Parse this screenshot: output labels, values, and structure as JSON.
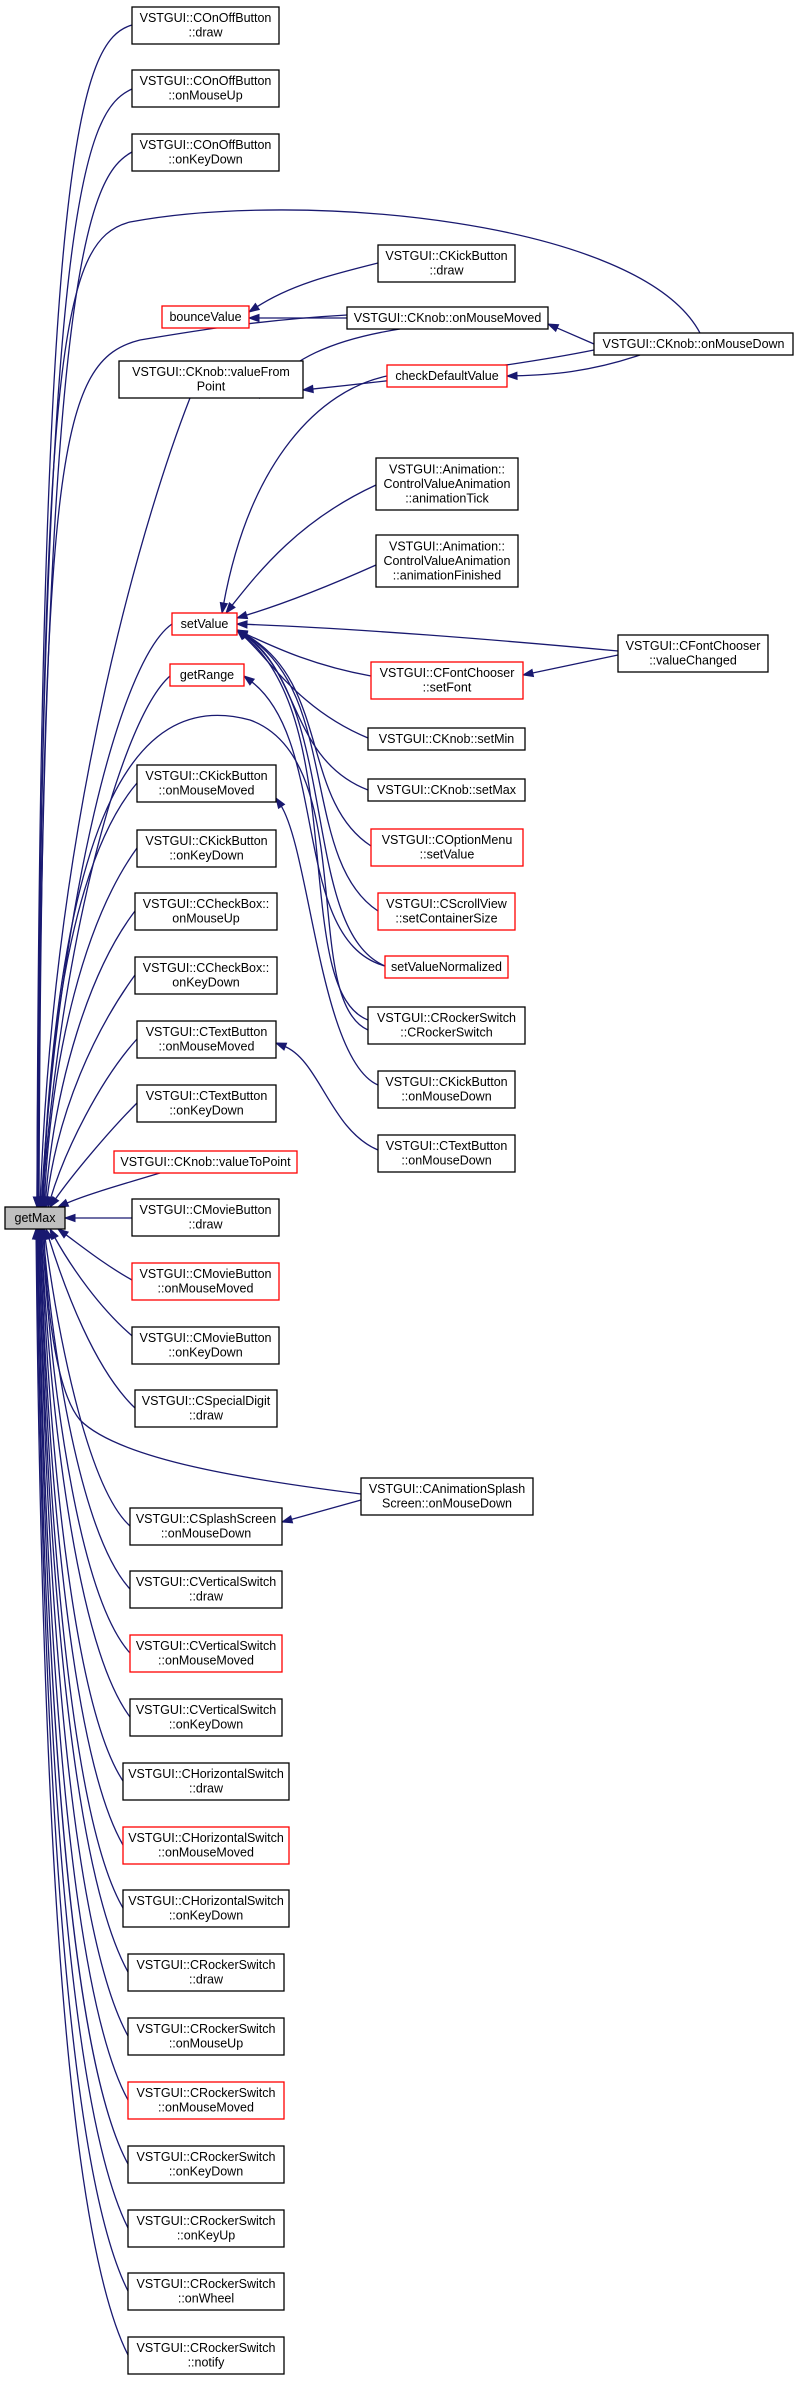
{
  "colors": {
    "edge": "#191970",
    "node_border": "#000000",
    "node_border_truncated": "#ff0000",
    "node_fill": "#ffffff",
    "root_fill": "#bfbfbf"
  },
  "nodes": [
    {
      "id": "getMax",
      "lines": [
        "getMax"
      ],
      "style": "root"
    },
    {
      "id": "onoff_draw",
      "lines": [
        "VSTGUI::COnOffButton",
        "::draw"
      ],
      "style": "normal"
    },
    {
      "id": "onoff_mouseup",
      "lines": [
        "VSTGUI::COnOffButton",
        "::onMouseUp"
      ],
      "style": "normal"
    },
    {
      "id": "onoff_keydown",
      "lines": [
        "VSTGUI::COnOffButton",
        "::onKeyDown"
      ],
      "style": "normal"
    },
    {
      "id": "kick_draw",
      "lines": [
        "VSTGUI::CKickButton",
        "::draw"
      ],
      "style": "normal"
    },
    {
      "id": "bounceValue",
      "lines": [
        "bounceValue"
      ],
      "style": "red"
    },
    {
      "id": "knob_mousemoved",
      "lines": [
        "VSTGUI::CKnob::onMouseMoved"
      ],
      "style": "normal"
    },
    {
      "id": "knob_mousedown",
      "lines": [
        "VSTGUI::CKnob::onMouseDown"
      ],
      "style": "normal"
    },
    {
      "id": "knob_valuefrompoint",
      "lines": [
        "VSTGUI::CKnob::valueFrom",
        "Point"
      ],
      "style": "normal"
    },
    {
      "id": "checkDefaultValue",
      "lines": [
        "checkDefaultValue"
      ],
      "style": "red"
    },
    {
      "id": "anim_tick",
      "lines": [
        "VSTGUI::Animation::",
        "ControlValueAnimation",
        "::animationTick"
      ],
      "style": "normal"
    },
    {
      "id": "anim_finished",
      "lines": [
        "VSTGUI::Animation::",
        "ControlValueAnimation",
        "::animationFinished"
      ],
      "style": "normal"
    },
    {
      "id": "setValue",
      "lines": [
        "setValue"
      ],
      "style": "red"
    },
    {
      "id": "fontchooser_valuechanged",
      "lines": [
        "VSTGUI::CFontChooser",
        "::valueChanged"
      ],
      "style": "normal"
    },
    {
      "id": "fontchooser_setfont",
      "lines": [
        "VSTGUI::CFontChooser",
        "::setFont"
      ],
      "style": "red"
    },
    {
      "id": "getRange",
      "lines": [
        "getRange"
      ],
      "style": "red"
    },
    {
      "id": "knob_setmin",
      "lines": [
        "VSTGUI::CKnob::setMin"
      ],
      "style": "normal"
    },
    {
      "id": "knob_setmax",
      "lines": [
        "VSTGUI::CKnob::setMax"
      ],
      "style": "normal"
    },
    {
      "id": "kick_mousemoved",
      "lines": [
        "VSTGUI::CKickButton",
        "::onMouseMoved"
      ],
      "style": "normal"
    },
    {
      "id": "optionmenu_setvalue",
      "lines": [
        "VSTGUI::COptionMenu",
        "::setValue"
      ],
      "style": "red"
    },
    {
      "id": "kick_keydown",
      "lines": [
        "VSTGUI::CKickButton",
        "::onKeyDown"
      ],
      "style": "normal"
    },
    {
      "id": "scrollview_setcontainersize",
      "lines": [
        "VSTGUI::CScrollView",
        "::setContainerSize"
      ],
      "style": "red"
    },
    {
      "id": "checkbox_mouseup",
      "lines": [
        "VSTGUI::CCheckBox::",
        "onMouseUp"
      ],
      "style": "normal"
    },
    {
      "id": "setValueNormalized",
      "lines": [
        "setValueNormalized"
      ],
      "style": "red"
    },
    {
      "id": "checkbox_keydown",
      "lines": [
        "VSTGUI::CCheckBox::",
        "onKeyDown"
      ],
      "style": "normal"
    },
    {
      "id": "rocker_ctor",
      "lines": [
        "VSTGUI::CRockerSwitch",
        "::CRockerSwitch"
      ],
      "style": "normal"
    },
    {
      "id": "text_mousemoved",
      "lines": [
        "VSTGUI::CTextButton",
        "::onMouseMoved"
      ],
      "style": "normal"
    },
    {
      "id": "kick_mousedown",
      "lines": [
        "VSTGUI::CKickButton",
        "::onMouseDown"
      ],
      "style": "normal"
    },
    {
      "id": "text_keydown",
      "lines": [
        "VSTGUI::CTextButton",
        "::onKeyDown"
      ],
      "style": "normal"
    },
    {
      "id": "text_mousedown",
      "lines": [
        "VSTGUI::CTextButton",
        "::onMouseDown"
      ],
      "style": "normal"
    },
    {
      "id": "knob_valuetopoint",
      "lines": [
        "VSTGUI::CKnob::valueToPoint"
      ],
      "style": "red"
    },
    {
      "id": "movie_draw",
      "lines": [
        "VSTGUI::CMovieButton",
        "::draw"
      ],
      "style": "normal"
    },
    {
      "id": "movie_mousemoved",
      "lines": [
        "VSTGUI::CMovieButton",
        "::onMouseMoved"
      ],
      "style": "red"
    },
    {
      "id": "movie_keydown",
      "lines": [
        "VSTGUI::CMovieButton",
        "::onKeyDown"
      ],
      "style": "normal"
    },
    {
      "id": "specialdigit_draw",
      "lines": [
        "VSTGUI::CSpecialDigit",
        "::draw"
      ],
      "style": "normal"
    },
    {
      "id": "animsplash_mousedown",
      "lines": [
        "VSTGUI::CAnimationSplash",
        "Screen::onMouseDown"
      ],
      "style": "normal"
    },
    {
      "id": "splash_mousedown",
      "lines": [
        "VSTGUI::CSplashScreen",
        "::onMouseDown"
      ],
      "style": "normal"
    },
    {
      "id": "vswitch_draw",
      "lines": [
        "VSTGUI::CVerticalSwitch",
        "::draw"
      ],
      "style": "normal"
    },
    {
      "id": "vswitch_mousemoved",
      "lines": [
        "VSTGUI::CVerticalSwitch",
        "::onMouseMoved"
      ],
      "style": "red"
    },
    {
      "id": "vswitch_keydown",
      "lines": [
        "VSTGUI::CVerticalSwitch",
        "::onKeyDown"
      ],
      "style": "normal"
    },
    {
      "id": "hswitch_draw",
      "lines": [
        "VSTGUI::CHorizontalSwitch",
        "::draw"
      ],
      "style": "normal"
    },
    {
      "id": "hswitch_mousemoved",
      "lines": [
        "VSTGUI::CHorizontalSwitch",
        "::onMouseMoved"
      ],
      "style": "red"
    },
    {
      "id": "hswitch_keydown",
      "lines": [
        "VSTGUI::CHorizontalSwitch",
        "::onKeyDown"
      ],
      "style": "normal"
    },
    {
      "id": "rocker_draw",
      "lines": [
        "VSTGUI::CRockerSwitch",
        "::draw"
      ],
      "style": "normal"
    },
    {
      "id": "rocker_mouseup",
      "lines": [
        "VSTGUI::CRockerSwitch",
        "::onMouseUp"
      ],
      "style": "normal"
    },
    {
      "id": "rocker_mousemoved",
      "lines": [
        "VSTGUI::CRockerSwitch",
        "::onMouseMoved"
      ],
      "style": "red"
    },
    {
      "id": "rocker_keydown",
      "lines": [
        "VSTGUI::CRockerSwitch",
        "::onKeyDown"
      ],
      "style": "normal"
    },
    {
      "id": "rocker_keyup",
      "lines": [
        "VSTGUI::CRockerSwitch",
        "::onKeyUp"
      ],
      "style": "normal"
    },
    {
      "id": "rocker_wheel",
      "lines": [
        "VSTGUI::CRockerSwitch",
        "::onWheel"
      ],
      "style": "normal"
    },
    {
      "id": "rocker_notify",
      "lines": [
        "VSTGUI::CRockerSwitch",
        "::notify"
      ],
      "style": "normal"
    }
  ],
  "edges": [
    {
      "from": "onoff_draw",
      "to": "getMax"
    },
    {
      "from": "onoff_mouseup",
      "to": "getMax"
    },
    {
      "from": "onoff_keydown",
      "to": "getMax"
    },
    {
      "from": "knob_mousedown",
      "to": "getMax"
    },
    {
      "from": "kick_draw",
      "to": "bounceValue"
    },
    {
      "from": "knob_mousemoved",
      "to": "bounceValue"
    },
    {
      "from": "knob_mousedown",
      "to": "knob_mousemoved"
    },
    {
      "from": "knob_mousemoved",
      "to": "getMax"
    },
    {
      "from": "knob_mousemoved",
      "to": "knob_valuefrompoint"
    },
    {
      "from": "knob_mousedown",
      "to": "knob_valuefrompoint"
    },
    {
      "from": "knob_valuefrompoint",
      "to": "getMax"
    },
    {
      "from": "knob_mousedown",
      "to": "checkDefaultValue"
    },
    {
      "from": "checkDefaultValue",
      "to": "setValue"
    },
    {
      "from": "anim_tick",
      "to": "setValue"
    },
    {
      "from": "anim_finished",
      "to": "setValue"
    },
    {
      "from": "fontchooser_valuechanged",
      "to": "setValue"
    },
    {
      "from": "fontchooser_valuechanged",
      "to": "fontchooser_setfont"
    },
    {
      "from": "fontchooser_setfont",
      "to": "setValue"
    },
    {
      "from": "knob_setmin",
      "to": "setValue"
    },
    {
      "from": "knob_setmax",
      "to": "setValue"
    },
    {
      "from": "optionmenu_setvalue",
      "to": "setValue"
    },
    {
      "from": "scrollview_setcontainersize",
      "to": "setValue"
    },
    {
      "from": "setValueNormalized",
      "to": "setValue"
    },
    {
      "from": "rocker_ctor",
      "to": "setValue"
    },
    {
      "from": "setValue",
      "to": "getMax"
    },
    {
      "from": "setValueNormalized",
      "to": "getRange"
    },
    {
      "from": "getRange",
      "to": "getMax"
    },
    {
      "from": "rocker_ctor",
      "to": "getMax"
    },
    {
      "from": "kick_mousedown",
      "to": "kick_mousemoved"
    },
    {
      "from": "kick_mousemoved",
      "to": "getMax"
    },
    {
      "from": "kick_keydown",
      "to": "getMax"
    },
    {
      "from": "checkbox_mouseup",
      "to": "getMax"
    },
    {
      "from": "checkbox_keydown",
      "to": "getMax"
    },
    {
      "from": "text_mousedown",
      "to": "text_mousemoved"
    },
    {
      "from": "text_mousemoved",
      "to": "getMax"
    },
    {
      "from": "text_keydown",
      "to": "getMax"
    },
    {
      "from": "knob_valuetopoint",
      "to": "getMax"
    },
    {
      "from": "movie_draw",
      "to": "getMax"
    },
    {
      "from": "movie_mousemoved",
      "to": "getMax"
    },
    {
      "from": "movie_keydown",
      "to": "getMax"
    },
    {
      "from": "specialdigit_draw",
      "to": "getMax"
    },
    {
      "from": "animsplash_mousedown",
      "to": "getMax"
    },
    {
      "from": "animsplash_mousedown",
      "to": "splash_mousedown"
    },
    {
      "from": "splash_mousedown",
      "to": "getMax"
    },
    {
      "from": "vswitch_draw",
      "to": "getMax"
    },
    {
      "from": "vswitch_mousemoved",
      "to": "getMax"
    },
    {
      "from": "vswitch_keydown",
      "to": "getMax"
    },
    {
      "from": "hswitch_draw",
      "to": "getMax"
    },
    {
      "from": "hswitch_mousemoved",
      "to": "getMax"
    },
    {
      "from": "hswitch_keydown",
      "to": "getMax"
    },
    {
      "from": "rocker_draw",
      "to": "getMax"
    },
    {
      "from": "rocker_mouseup",
      "to": "getMax"
    },
    {
      "from": "rocker_mousemoved",
      "to": "getMax"
    },
    {
      "from": "rocker_keydown",
      "to": "getMax"
    },
    {
      "from": "rocker_keyup",
      "to": "getMax"
    },
    {
      "from": "rocker_wheel",
      "to": "getMax"
    },
    {
      "from": "rocker_notify",
      "to": "getMax"
    }
  ]
}
